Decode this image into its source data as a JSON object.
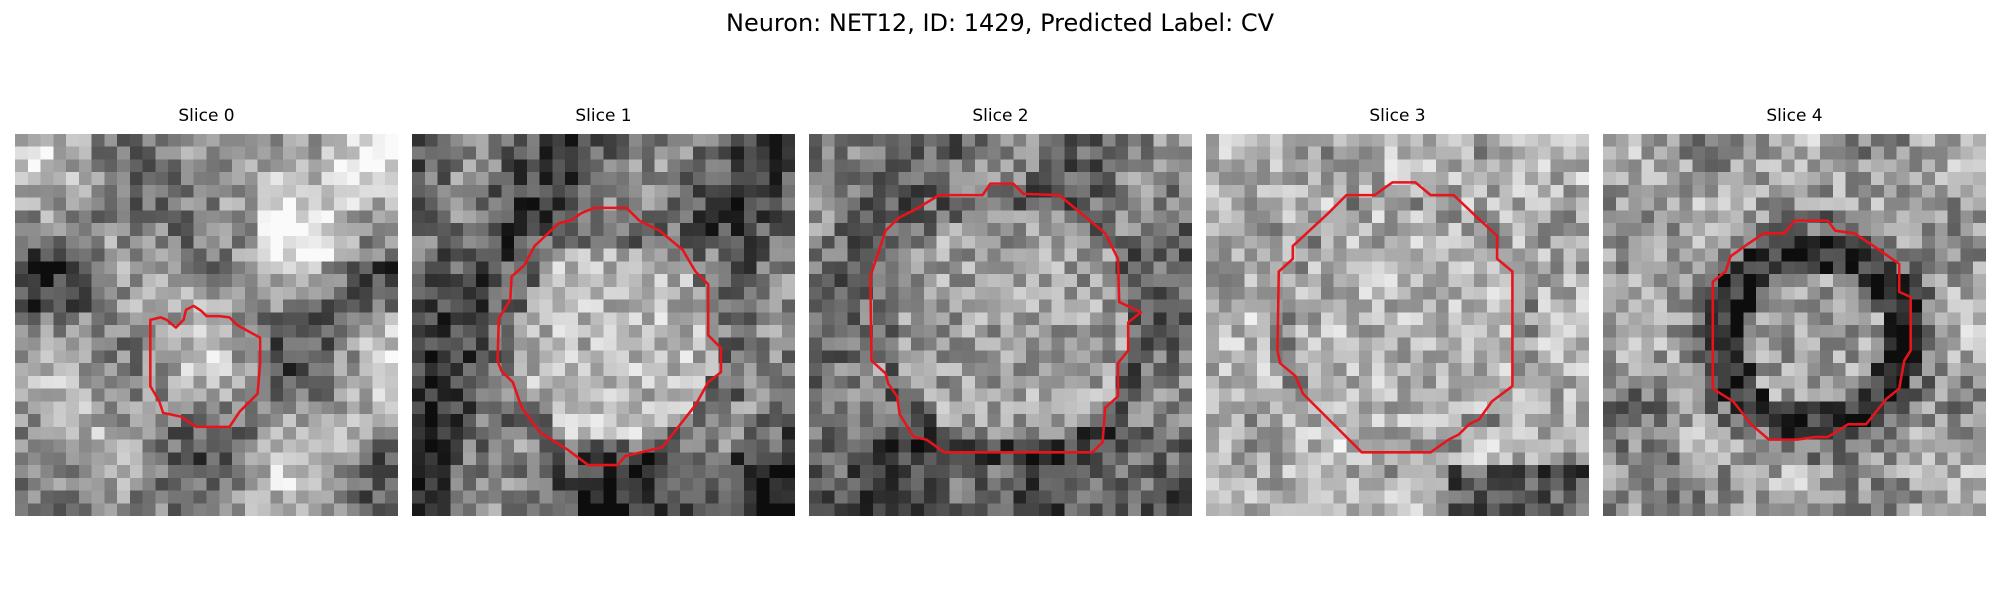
{
  "figure": {
    "title": "Neuron: NET12, ID: 1429, Predicted Label: CV",
    "contour_color": "#e8141c"
  },
  "slices": [
    {
      "label": "Slice 0"
    },
    {
      "label": "Slice 1"
    },
    {
      "label": "Slice 2"
    },
    {
      "label": "Slice 3"
    },
    {
      "label": "Slice 4"
    }
  ]
}
